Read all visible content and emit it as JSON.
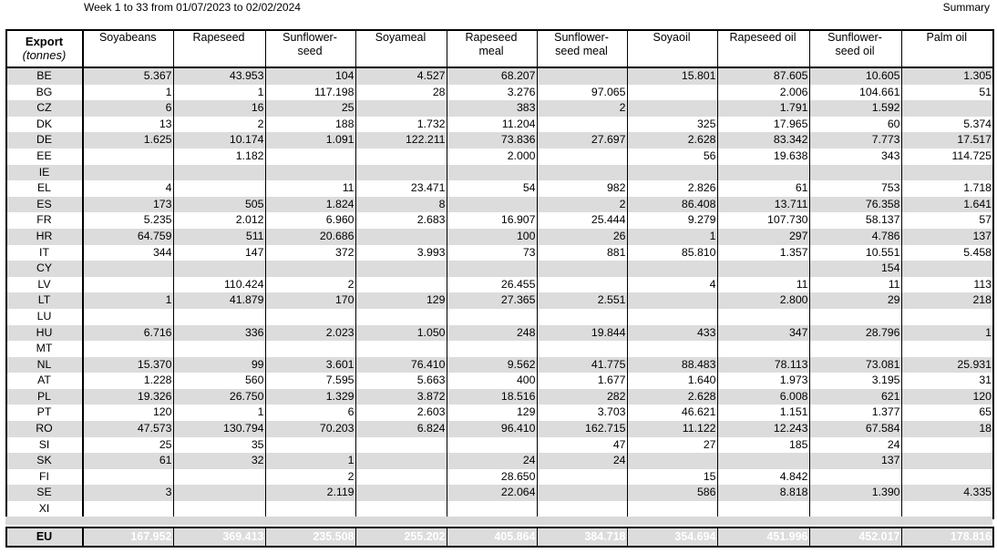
{
  "header": {
    "period": "Week 1 to 33 from 01/07/2023 to 02/02/2024",
    "summary": "Summary"
  },
  "table": {
    "export_title": "Export",
    "export_unit": "(tonnes)",
    "columns": [
      "Soyabeans",
      "Rapeseed",
      "Sunflower-\nseed",
      "Soyameal",
      "Rapeseed\nmeal",
      "Sunflower-\nseed meal",
      "Soyaoil",
      "Rapeseed oil",
      "Sunflower-\nseed oil",
      "Palm oil"
    ],
    "rows": [
      {
        "country": "BE",
        "values": [
          "5.367",
          "43.953",
          "104",
          "4.527",
          "68.207",
          "",
          "15.801",
          "87.605",
          "10.605",
          "1.305"
        ]
      },
      {
        "country": "BG",
        "values": [
          "1",
          "1",
          "117.198",
          "28",
          "3.276",
          "97.065",
          "",
          "2.006",
          "104.661",
          "51"
        ]
      },
      {
        "country": "CZ",
        "values": [
          "6",
          "16",
          "25",
          "",
          "383",
          "2",
          "",
          "1.791",
          "1.592",
          ""
        ]
      },
      {
        "country": "DK",
        "values": [
          "13",
          "2",
          "188",
          "1.732",
          "11.204",
          "",
          "325",
          "17.965",
          "60",
          "5.374"
        ]
      },
      {
        "country": "DE",
        "values": [
          "1.625",
          "10.174",
          "1.091",
          "122.211",
          "73.836",
          "27.697",
          "2.628",
          "83.342",
          "7.773",
          "17.517"
        ]
      },
      {
        "country": "EE",
        "values": [
          "",
          "1.182",
          "",
          "",
          "2.000",
          "",
          "56",
          "19.638",
          "343",
          "114.725"
        ]
      },
      {
        "country": "IE",
        "values": [
          "",
          "",
          "",
          "",
          "",
          "",
          "",
          "",
          "",
          ""
        ]
      },
      {
        "country": "EL",
        "values": [
          "4",
          "",
          "11",
          "23.471",
          "54",
          "982",
          "2.826",
          "61",
          "753",
          "1.718"
        ]
      },
      {
        "country": "ES",
        "values": [
          "173",
          "505",
          "1.824",
          "8",
          "",
          "2",
          "86.408",
          "13.711",
          "76.358",
          "1.641"
        ]
      },
      {
        "country": "FR",
        "values": [
          "5.235",
          "2.012",
          "6.960",
          "2.683",
          "16.907",
          "25.444",
          "9.279",
          "107.730",
          "58.137",
          "57"
        ]
      },
      {
        "country": "HR",
        "values": [
          "64.759",
          "511",
          "20.686",
          "",
          "100",
          "26",
          "1",
          "297",
          "4.786",
          "137"
        ]
      },
      {
        "country": "IT",
        "values": [
          "344",
          "147",
          "372",
          "3.993",
          "73",
          "881",
          "85.810",
          "1.357",
          "10.551",
          "5.458"
        ]
      },
      {
        "country": "CY",
        "values": [
          "",
          "",
          "",
          "",
          "",
          "",
          "",
          "",
          "154",
          ""
        ]
      },
      {
        "country": "LV",
        "values": [
          "",
          "110.424",
          "2",
          "",
          "26.455",
          "",
          "4",
          "11",
          "11",
          "113"
        ]
      },
      {
        "country": "LT",
        "values": [
          "1",
          "41.879",
          "170",
          "129",
          "27.365",
          "2.551",
          "",
          "2.800",
          "29",
          "218"
        ]
      },
      {
        "country": "LU",
        "values": [
          "",
          "",
          "",
          "",
          "",
          "",
          "",
          "",
          "",
          ""
        ]
      },
      {
        "country": "HU",
        "values": [
          "6.716",
          "336",
          "2.023",
          "1.050",
          "248",
          "19.844",
          "433",
          "347",
          "28.796",
          "1"
        ]
      },
      {
        "country": "MT",
        "values": [
          "",
          "",
          "",
          "",
          "",
          "",
          "",
          "",
          "",
          ""
        ]
      },
      {
        "country": "NL",
        "values": [
          "15.370",
          "99",
          "3.601",
          "76.410",
          "9.562",
          "41.775",
          "88.483",
          "78.113",
          "73.081",
          "25.931"
        ]
      },
      {
        "country": "AT",
        "values": [
          "1.228",
          "560",
          "7.595",
          "5.663",
          "400",
          "1.677",
          "1.640",
          "1.973",
          "3.195",
          "31"
        ]
      },
      {
        "country": "PL",
        "values": [
          "19.326",
          "26.750",
          "1.329",
          "3.872",
          "18.516",
          "282",
          "2.628",
          "6.008",
          "621",
          "120"
        ]
      },
      {
        "country": "PT",
        "values": [
          "120",
          "1",
          "6",
          "2.603",
          "129",
          "3.703",
          "46.621",
          "1.151",
          "1.377",
          "65"
        ]
      },
      {
        "country": "RO",
        "values": [
          "47.573",
          "130.794",
          "70.203",
          "6.824",
          "96.410",
          "162.715",
          "11.122",
          "12.243",
          "67.584",
          "18"
        ]
      },
      {
        "country": "SI",
        "values": [
          "25",
          "35",
          "",
          "",
          "",
          "47",
          "27",
          "185",
          "24",
          ""
        ]
      },
      {
        "country": "SK",
        "values": [
          "61",
          "32",
          "1",
          "",
          "24",
          "24",
          "",
          "",
          "137",
          ""
        ]
      },
      {
        "country": "FI",
        "values": [
          "",
          "",
          "2",
          "",
          "28.650",
          "",
          "15",
          "4.842",
          "",
          ""
        ]
      },
      {
        "country": "SE",
        "values": [
          "3",
          "",
          "2.119",
          "",
          "22.064",
          "",
          "586",
          "8.818",
          "1.390",
          "4.335"
        ]
      },
      {
        "country": "XI",
        "values": [
          "",
          "",
          "",
          "",
          "",
          "",
          "",
          "",
          "",
          ""
        ]
      }
    ],
    "total": {
      "country": "EU",
      "values": [
        "167.952",
        "369.413",
        "235.508",
        "255.202",
        "405.864",
        "384.718",
        "354.694",
        "451.996",
        "452.017",
        "178.816"
      ]
    }
  }
}
